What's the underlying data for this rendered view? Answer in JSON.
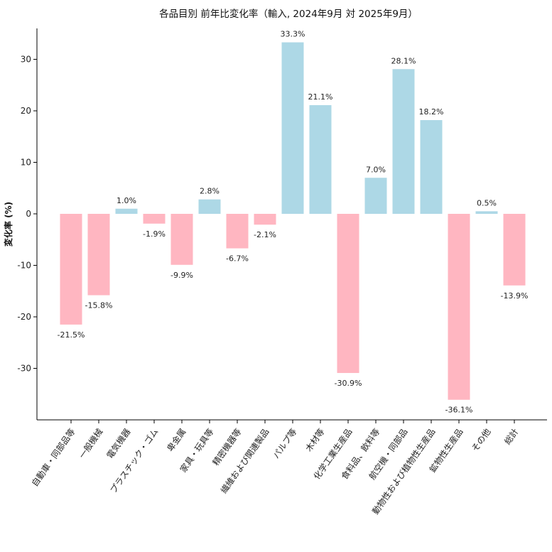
{
  "chart_data": {
    "type": "bar",
    "title": "各品目別 前年比変化率（輸入, 2024年9月 対 2025年9月）",
    "xlabel": "",
    "ylabel": "変化率 (%)",
    "ylim": [
      -40,
      36
    ],
    "yticks": [
      -30,
      -20,
      -10,
      0,
      10,
      20,
      30
    ],
    "categories": [
      "自動車・同部品等",
      "一般機械",
      "電気機器",
      "プラスチック・ゴム",
      "卑金属",
      "家具・玩具等",
      "精密機器等",
      "繊維および関連製品",
      "パルプ等",
      "木材等",
      "化学工業生産品",
      "食料品、飲料等",
      "航空機・同部品",
      "動物性および植物性生産品",
      "鉱物性生産品",
      "その他",
      "総計"
    ],
    "values": [
      -21.5,
      -15.8,
      1.0,
      -1.9,
      -9.9,
      2.8,
      -6.7,
      -2.1,
      33.3,
      21.1,
      -30.9,
      7.0,
      28.1,
      18.2,
      -36.1,
      0.5,
      -13.9
    ],
    "value_labels": [
      "-21.5%",
      "-15.8%",
      "1.0%",
      "-1.9%",
      "-9.9%",
      "2.8%",
      "-6.7%",
      "-2.1%",
      "33.3%",
      "21.1%",
      "-30.9%",
      "7.0%",
      "28.1%",
      "18.2%",
      "-36.1%",
      "0.5%",
      "-13.9%"
    ],
    "colors": {
      "positive": "#add8e6",
      "negative": "#ffb6c1"
    },
    "grid": false,
    "legend": "none"
  }
}
